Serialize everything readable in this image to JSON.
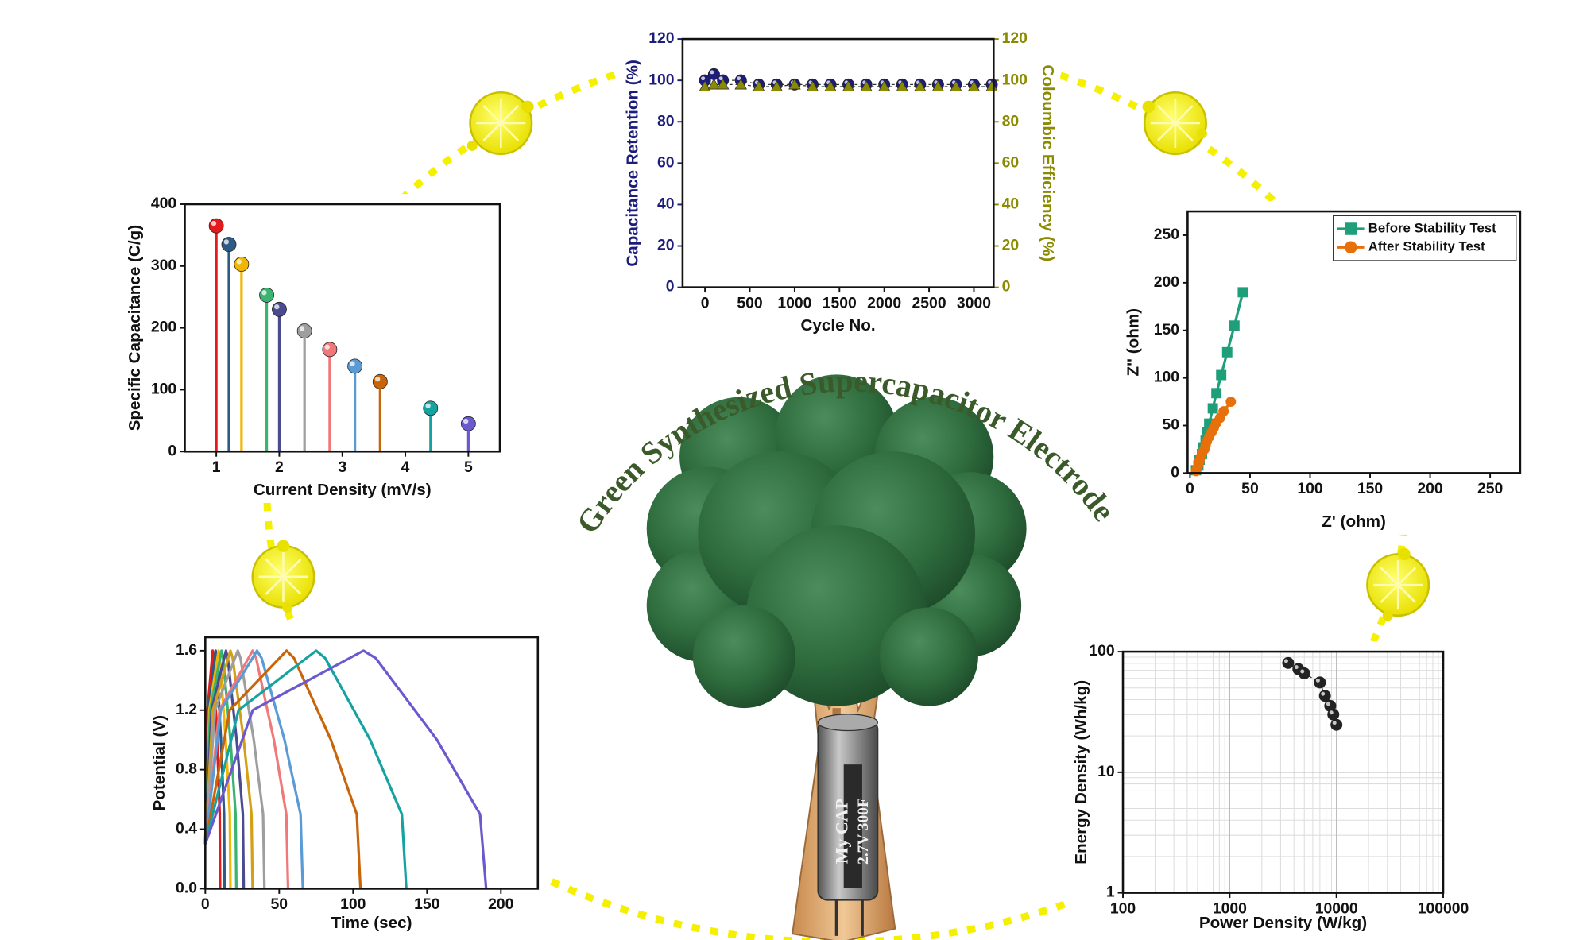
{
  "title": "Green Synthesized Supercapacitor Electrode",
  "capacitor": [
    "My CAP",
    "2.7V 300F"
  ],
  "chart_data": [
    {
      "type": "stem",
      "x_label": "Current Density (mV/s)",
      "y_label": "Specific Capacitance (C/g)",
      "x": [
        1,
        1.2,
        1.4,
        1.8,
        2,
        2.4,
        2.8,
        3.2,
        3.6,
        4.4,
        5
      ],
      "values": [
        365,
        335,
        303,
        253,
        230,
        195,
        165,
        138,
        113,
        70,
        45
      ],
      "colors": [
        "#e41a1c",
        "#2e5a88",
        "#f2b705",
        "#3cb371",
        "#4b4b8f",
        "#9e9e9e",
        "#f07878",
        "#5b9bd5",
        "#c8650a",
        "#17a2a2",
        "#6a5acd"
      ],
      "marker": "sphere",
      "xlim": [
        0.5,
        5.5
      ],
      "xticks": [
        1,
        2,
        3,
        4,
        5
      ],
      "ylim": [
        0,
        400
      ],
      "yticks": [
        0,
        100,
        200,
        300,
        400
      ]
    },
    {
      "type": "scatter",
      "x_label": "Cycle No.",
      "y_label": "Capacitance Retention (%)",
      "y2_label": "Coloumbic Efficiency (%)",
      "x": [
        0,
        100,
        200,
        400,
        600,
        800,
        1000,
        1200,
        1400,
        1600,
        1800,
        2000,
        2200,
        2400,
        2600,
        2800,
        3000,
        3200
      ],
      "series": [
        {
          "color": "#1c1c7a",
          "marker": "sphere",
          "values": [
            100,
            103,
            100,
            100,
            98,
            98,
            98,
            98,
            98,
            98,
            98,
            98,
            98,
            98,
            98,
            98,
            98,
            98
          ]
        },
        {
          "color": "#8b8b00",
          "marker": "triangle",
          "axis": "y2",
          "values": [
            97,
            98,
            98,
            98,
            97,
            97,
            98,
            97,
            97,
            97,
            97,
            97,
            97,
            97,
            97,
            97,
            97,
            97
          ]
        }
      ],
      "xlim": [
        -250,
        3220
      ],
      "xticks": [
        0,
        500,
        1000,
        1500,
        2000,
        2500,
        3000
      ],
      "ylim": [
        0,
        120
      ],
      "yticks": [
        0,
        20,
        40,
        60,
        80,
        100,
        120
      ],
      "y2lim": [
        0,
        120
      ],
      "y2ticks": [
        0,
        20,
        40,
        60,
        80,
        100,
        120
      ]
    },
    {
      "type": "line",
      "x_label": "Z' (ohm)",
      "y_label": "Z'' (ohm)",
      "legend": "upper right",
      "series": [
        {
          "name": "Before Stability Test",
          "color": "#1f9e7a",
          "marker": "square",
          "x": [
            5,
            7,
            8,
            10,
            11,
            13,
            14,
            16,
            19,
            22,
            26,
            31,
            37,
            44
          ],
          "values": [
            3,
            8,
            14,
            20,
            27,
            34,
            43,
            52,
            68,
            84,
            103,
            127,
            155,
            190
          ]
        },
        {
          "name": "After Stability Test",
          "color": "#e8700a",
          "marker": "circle",
          "x": [
            5,
            6,
            7,
            8,
            9,
            10,
            12,
            13,
            14,
            16,
            18,
            20,
            22,
            25,
            28,
            34
          ],
          "values": [
            2,
            5,
            9,
            13,
            17,
            21,
            25,
            29,
            33,
            38,
            43,
            48,
            53,
            58,
            65,
            75
          ]
        }
      ],
      "xlim": [
        -2,
        275
      ],
      "xticks": [
        0,
        50,
        100,
        150,
        200,
        250
      ],
      "ylim": [
        0,
        275
      ],
      "yticks": [
        0,
        50,
        100,
        150,
        200,
        250
      ]
    },
    {
      "type": "line",
      "x_label": "Time (sec)",
      "y_label": "Potential (V)",
      "series": [
        {
          "color": "#e41a1c",
          "x": [
            0,
            1.5,
            5,
            5.5,
            8,
            9.75,
            10
          ],
          "values": [
            0.3,
            1.2,
            1.6,
            1.55,
            1,
            0.5,
            0
          ]
        },
        {
          "color": "#2e5a88",
          "x": [
            0,
            2.1,
            7,
            7.6,
            10.6,
            12.7,
            13
          ],
          "values": [
            0.3,
            1.2,
            1.6,
            1.55,
            1,
            0.5,
            0
          ]
        },
        {
          "color": "#f2b705",
          "x": [
            0,
            2.7,
            9,
            9.8,
            13.8,
            16.6,
            17
          ],
          "values": [
            0.3,
            1.2,
            1.6,
            1.55,
            1,
            0.5,
            0
          ]
        },
        {
          "color": "#3cb371",
          "x": [
            0,
            3.3,
            11,
            12,
            17,
            20.5,
            21
          ],
          "values": [
            0.3,
            1.2,
            1.6,
            1.55,
            1,
            0.5,
            0
          ]
        },
        {
          "color": "#4b4b8f",
          "x": [
            0,
            4.2,
            14,
            15.2,
            21.2,
            25.4,
            26
          ],
          "values": [
            0.3,
            1.2,
            1.6,
            1.55,
            1,
            0.5,
            0
          ]
        },
        {
          "color": "#d4a017",
          "x": [
            0,
            5.1,
            17,
            18.5,
            26,
            31.25,
            32
          ],
          "values": [
            0.3,
            1.2,
            1.6,
            1.55,
            1,
            0.5,
            0
          ]
        },
        {
          "color": "#9e9e9e",
          "x": [
            0,
            6.6,
            22,
            23.8,
            32.8,
            39.1,
            40
          ],
          "values": [
            0.3,
            1.2,
            1.6,
            1.55,
            1,
            0.5,
            0
          ]
        },
        {
          "color": "#f07878",
          "x": [
            0,
            9.6,
            32,
            34.4,
            46.4,
            54.8,
            56
          ],
          "values": [
            0.3,
            1.2,
            1.6,
            1.55,
            1,
            0.5,
            0
          ]
        },
        {
          "color": "#5b9bd5",
          "x": [
            0,
            10.5,
            35,
            38.1,
            53.6,
            64.45,
            66
          ],
          "values": [
            0.3,
            1.2,
            1.6,
            1.55,
            1,
            0.5,
            0
          ]
        },
        {
          "color": "#c8650a",
          "x": [
            0,
            16.5,
            55,
            60,
            85,
            102.5,
            105
          ],
          "values": [
            0.3,
            1.2,
            1.6,
            1.55,
            1,
            0.5,
            0
          ]
        },
        {
          "color": "#17a2a2",
          "x": [
            0,
            22.5,
            75,
            81.1,
            111.6,
            133,
            136
          ],
          "values": [
            0.3,
            1.2,
            1.6,
            1.55,
            1,
            0.5,
            0
          ]
        },
        {
          "color": "#6a5acd",
          "x": [
            0,
            32.1,
            107,
            115.3,
            156.8,
            185.9,
            190
          ],
          "values": [
            0.3,
            1.2,
            1.6,
            1.55,
            1,
            0.5,
            0
          ]
        }
      ],
      "xlim": [
        0,
        225
      ],
      "xticks": [
        0,
        50,
        100,
        150,
        200
      ],
      "ylim": [
        0,
        1.69
      ],
      "yticks": [
        {
          "value": 0,
          "label": "0.0"
        },
        {
          "value": 0.4,
          "label": "0.4"
        },
        {
          "value": 0.8,
          "label": "0.8"
        },
        {
          "value": 1.2,
          "label": "1.2"
        },
        {
          "value": 1.6,
          "label": "1.6"
        }
      ]
    },
    {
      "type": "scatter",
      "x_label": "Power Density (W/kg)",
      "y_label": "Energy Density (Wh/kg)",
      "x": [
        3530,
        4400,
        5000,
        7000,
        7800,
        8750,
        9350,
        10000
      ],
      "series": [
        {
          "color": "#222222",
          "marker": "sphere",
          "values": [
            80.5,
            71.6,
            66,
            55.5,
            43,
            35.5,
            30.1,
            24.7
          ]
        }
      ],
      "log_x": true,
      "log_y": true,
      "grid": true,
      "xlim": [
        100,
        100000
      ],
      "xticks": [
        100,
        1000,
        10000,
        100000
      ],
      "ylim": [
        1,
        100
      ],
      "yticks": [
        1,
        10,
        100
      ]
    }
  ]
}
